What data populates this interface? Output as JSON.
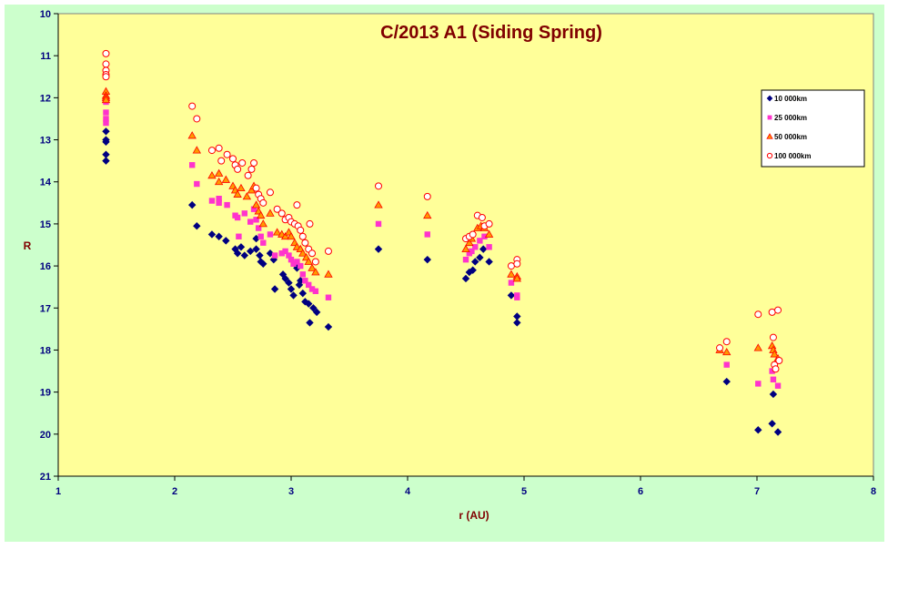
{
  "chart_data": {
    "type": "scatter",
    "title": "C/2013 A1 (Siding Spring)",
    "xlabel": "r (AU)",
    "ylabel": "R",
    "xlim": [
      1,
      8
    ],
    "ylim": [
      10,
      21
    ],
    "y_inverted": true,
    "x_ticks": [
      "1",
      "2",
      "3",
      "4",
      "5",
      "6",
      "7",
      "8"
    ],
    "y_ticks": [
      "10",
      "11",
      "12",
      "13",
      "14",
      "15",
      "16",
      "17",
      "18",
      "19",
      "20",
      "21"
    ],
    "legend_position": "top-right",
    "series": [
      {
        "name": "10 000km",
        "marker": "diamond",
        "color": "#000080",
        "points": [
          [
            1.41,
            12.8
          ],
          [
            1.41,
            13.0
          ],
          [
            1.41,
            13.05
          ],
          [
            1.41,
            13.35
          ],
          [
            1.41,
            13.5
          ],
          [
            2.15,
            14.55
          ],
          [
            2.19,
            15.05
          ],
          [
            2.32,
            15.25
          ],
          [
            2.38,
            15.3
          ],
          [
            2.44,
            15.4
          ],
          [
            2.52,
            15.6
          ],
          [
            2.54,
            15.7
          ],
          [
            2.57,
            15.55
          ],
          [
            2.6,
            15.75
          ],
          [
            2.65,
            15.65
          ],
          [
            2.7,
            15.35
          ],
          [
            2.7,
            15.6
          ],
          [
            2.73,
            15.75
          ],
          [
            2.74,
            15.9
          ],
          [
            2.76,
            15.95
          ],
          [
            2.82,
            15.7
          ],
          [
            2.85,
            15.85
          ],
          [
            2.86,
            16.55
          ],
          [
            2.93,
            16.2
          ],
          [
            2.95,
            16.3
          ],
          [
            2.98,
            16.4
          ],
          [
            3.0,
            16.55
          ],
          [
            3.02,
            16.7
          ],
          [
            3.05,
            16.05
          ],
          [
            3.07,
            16.45
          ],
          [
            3.08,
            16.35
          ],
          [
            3.1,
            16.65
          ],
          [
            3.12,
            16.85
          ],
          [
            3.15,
            16.9
          ],
          [
            3.16,
            17.35
          ],
          [
            3.19,
            17.0
          ],
          [
            3.22,
            17.1
          ],
          [
            3.32,
            17.45
          ],
          [
            3.75,
            15.6
          ],
          [
            4.17,
            15.85
          ],
          [
            4.5,
            16.3
          ],
          [
            4.53,
            16.15
          ],
          [
            4.56,
            16.1
          ],
          [
            4.58,
            15.9
          ],
          [
            4.62,
            15.8
          ],
          [
            4.65,
            15.6
          ],
          [
            4.7,
            15.9
          ],
          [
            4.89,
            16.7
          ],
          [
            4.94,
            17.2
          ],
          [
            4.94,
            17.35
          ],
          [
            6.74,
            18.75
          ],
          [
            7.01,
            19.9
          ],
          [
            7.13,
            19.75
          ],
          [
            7.14,
            19.05
          ],
          [
            7.18,
            19.95
          ]
        ]
      },
      {
        "name": "25 000km",
        "marker": "square",
        "color": "#ff33cc",
        "points": [
          [
            1.41,
            12.1
          ],
          [
            1.41,
            12.35
          ],
          [
            1.41,
            12.5
          ],
          [
            1.41,
            12.6
          ],
          [
            2.15,
            13.6
          ],
          [
            2.19,
            14.05
          ],
          [
            2.32,
            14.45
          ],
          [
            2.38,
            14.4
          ],
          [
            2.38,
            14.5
          ],
          [
            2.45,
            14.55
          ],
          [
            2.52,
            14.8
          ],
          [
            2.54,
            14.85
          ],
          [
            2.55,
            15.3
          ],
          [
            2.6,
            14.75
          ],
          [
            2.65,
            14.95
          ],
          [
            2.68,
            14.65
          ],
          [
            2.7,
            14.9
          ],
          [
            2.72,
            15.1
          ],
          [
            2.74,
            15.3
          ],
          [
            2.76,
            15.45
          ],
          [
            2.82,
            15.25
          ],
          [
            2.86,
            15.75
          ],
          [
            2.92,
            15.7
          ],
          [
            2.95,
            15.65
          ],
          [
            2.98,
            15.75
          ],
          [
            3.0,
            15.85
          ],
          [
            3.02,
            15.95
          ],
          [
            3.05,
            15.9
          ],
          [
            3.08,
            16.0
          ],
          [
            3.1,
            16.2
          ],
          [
            3.12,
            16.35
          ],
          [
            3.15,
            16.45
          ],
          [
            3.18,
            16.55
          ],
          [
            3.21,
            16.6
          ],
          [
            3.32,
            16.75
          ],
          [
            3.75,
            15.0
          ],
          [
            4.17,
            15.25
          ],
          [
            4.5,
            15.85
          ],
          [
            4.53,
            15.7
          ],
          [
            4.55,
            15.65
          ],
          [
            4.58,
            15.55
          ],
          [
            4.62,
            15.4
          ],
          [
            4.66,
            15.3
          ],
          [
            4.7,
            15.55
          ],
          [
            4.89,
            16.4
          ],
          [
            4.94,
            16.7
          ],
          [
            4.94,
            16.75
          ],
          [
            6.68,
            18.0
          ],
          [
            6.74,
            18.35
          ],
          [
            7.01,
            18.8
          ],
          [
            7.13,
            18.5
          ],
          [
            7.14,
            18.7
          ],
          [
            7.18,
            18.85
          ]
        ]
      },
      {
        "name": "50 000km",
        "marker": "triangle",
        "color": "#ff0000",
        "fill": "#ff9900",
        "points": [
          [
            1.41,
            11.85
          ],
          [
            1.41,
            11.95
          ],
          [
            1.41,
            12.0
          ],
          [
            1.41,
            12.05
          ],
          [
            2.15,
            12.9
          ],
          [
            2.19,
            13.25
          ],
          [
            2.32,
            13.85
          ],
          [
            2.38,
            13.8
          ],
          [
            2.38,
            14.0
          ],
          [
            2.44,
            13.95
          ],
          [
            2.5,
            14.1
          ],
          [
            2.52,
            14.2
          ],
          [
            2.54,
            14.3
          ],
          [
            2.57,
            14.15
          ],
          [
            2.62,
            14.35
          ],
          [
            2.66,
            14.2
          ],
          [
            2.68,
            14.1
          ],
          [
            2.7,
            14.55
          ],
          [
            2.72,
            14.7
          ],
          [
            2.74,
            14.8
          ],
          [
            2.76,
            15.0
          ],
          [
            2.82,
            14.75
          ],
          [
            2.88,
            15.2
          ],
          [
            2.92,
            15.25
          ],
          [
            2.95,
            15.3
          ],
          [
            2.98,
            15.2
          ],
          [
            3.0,
            15.3
          ],
          [
            3.03,
            15.45
          ],
          [
            3.05,
            15.55
          ],
          [
            3.08,
            15.6
          ],
          [
            3.1,
            15.7
          ],
          [
            3.13,
            15.8
          ],
          [
            3.15,
            15.9
          ],
          [
            3.18,
            16.05
          ],
          [
            3.21,
            16.15
          ],
          [
            3.32,
            16.2
          ],
          [
            3.75,
            14.55
          ],
          [
            4.17,
            14.8
          ],
          [
            4.5,
            15.6
          ],
          [
            4.53,
            15.45
          ],
          [
            4.55,
            15.35
          ],
          [
            4.6,
            15.1
          ],
          [
            4.63,
            15.05
          ],
          [
            4.66,
            15.1
          ],
          [
            4.7,
            15.25
          ],
          [
            4.89,
            16.2
          ],
          [
            4.94,
            16.25
          ],
          [
            4.94,
            16.3
          ],
          [
            6.68,
            18.0
          ],
          [
            6.74,
            18.05
          ],
          [
            7.01,
            17.95
          ],
          [
            7.13,
            17.9
          ],
          [
            7.14,
            18.0
          ],
          [
            7.15,
            18.1
          ],
          [
            7.18,
            18.2
          ]
        ]
      },
      {
        "name": "100 000km",
        "marker": "circle",
        "color": "#ff0000",
        "fill": "#ffffff",
        "points": [
          [
            1.41,
            10.95
          ],
          [
            1.41,
            11.2
          ],
          [
            1.41,
            11.35
          ],
          [
            1.41,
            11.45
          ],
          [
            1.41,
            11.5
          ],
          [
            2.15,
            12.2
          ],
          [
            2.19,
            12.5
          ],
          [
            2.32,
            13.25
          ],
          [
            2.38,
            13.2
          ],
          [
            2.4,
            13.5
          ],
          [
            2.45,
            13.35
          ],
          [
            2.5,
            13.45
          ],
          [
            2.52,
            13.6
          ],
          [
            2.54,
            13.7
          ],
          [
            2.58,
            13.55
          ],
          [
            2.63,
            13.85
          ],
          [
            2.66,
            13.7
          ],
          [
            2.68,
            13.55
          ],
          [
            2.7,
            14.15
          ],
          [
            2.72,
            14.3
          ],
          [
            2.74,
            14.4
          ],
          [
            2.76,
            14.5
          ],
          [
            2.82,
            14.25
          ],
          [
            2.88,
            14.65
          ],
          [
            2.92,
            14.75
          ],
          [
            2.95,
            14.9
          ],
          [
            2.98,
            14.85
          ],
          [
            3.0,
            14.95
          ],
          [
            3.03,
            15.0
          ],
          [
            3.05,
            14.55
          ],
          [
            3.06,
            15.05
          ],
          [
            3.08,
            15.15
          ],
          [
            3.1,
            15.3
          ],
          [
            3.12,
            15.45
          ],
          [
            3.15,
            15.6
          ],
          [
            3.16,
            15.0
          ],
          [
            3.18,
            15.7
          ],
          [
            3.21,
            15.9
          ],
          [
            3.32,
            15.65
          ],
          [
            3.75,
            14.1
          ],
          [
            4.17,
            14.35
          ],
          [
            4.5,
            15.35
          ],
          [
            4.53,
            15.3
          ],
          [
            4.56,
            15.25
          ],
          [
            4.6,
            14.8
          ],
          [
            4.64,
            14.85
          ],
          [
            4.66,
            15.05
          ],
          [
            4.7,
            15.0
          ],
          [
            4.89,
            16.0
          ],
          [
            4.94,
            15.85
          ],
          [
            4.94,
            15.95
          ],
          [
            6.68,
            17.95
          ],
          [
            6.74,
            17.8
          ],
          [
            7.01,
            17.15
          ],
          [
            7.13,
            17.1
          ],
          [
            7.14,
            17.7
          ],
          [
            7.15,
            18.35
          ],
          [
            7.16,
            18.45
          ],
          [
            7.18,
            17.05
          ],
          [
            7.19,
            18.25
          ]
        ]
      }
    ]
  }
}
